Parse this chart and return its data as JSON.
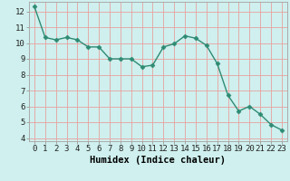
{
  "x": [
    0,
    1,
    2,
    3,
    4,
    5,
    6,
    7,
    8,
    9,
    10,
    11,
    12,
    13,
    14,
    15,
    16,
    17,
    18,
    19,
    20,
    21,
    22,
    23
  ],
  "y": [
    12.3,
    10.35,
    10.2,
    10.35,
    10.2,
    9.75,
    9.75,
    9.0,
    9.0,
    9.0,
    8.5,
    8.6,
    9.75,
    9.95,
    10.45,
    10.3,
    9.85,
    8.7,
    6.7,
    5.7,
    6.0,
    5.5,
    4.85,
    4.5
  ],
  "line_color": "#2e8b74",
  "marker": "D",
  "marker_size": 2.5,
  "line_width": 1.0,
  "bg_color": "#cff0ee",
  "grid_color": "#e8a0a0",
  "xlabel": "Humidex (Indice chaleur)",
  "xlim": [
    -0.5,
    23.5
  ],
  "ylim": [
    3.8,
    12.6
  ],
  "yticks": [
    4,
    5,
    6,
    7,
    8,
    9,
    10,
    11,
    12
  ],
  "xticks": [
    0,
    1,
    2,
    3,
    4,
    5,
    6,
    7,
    8,
    9,
    10,
    11,
    12,
    13,
    14,
    15,
    16,
    17,
    18,
    19,
    20,
    21,
    22,
    23
  ],
  "tick_fontsize": 6.5,
  "xlabel_fontsize": 7.5
}
